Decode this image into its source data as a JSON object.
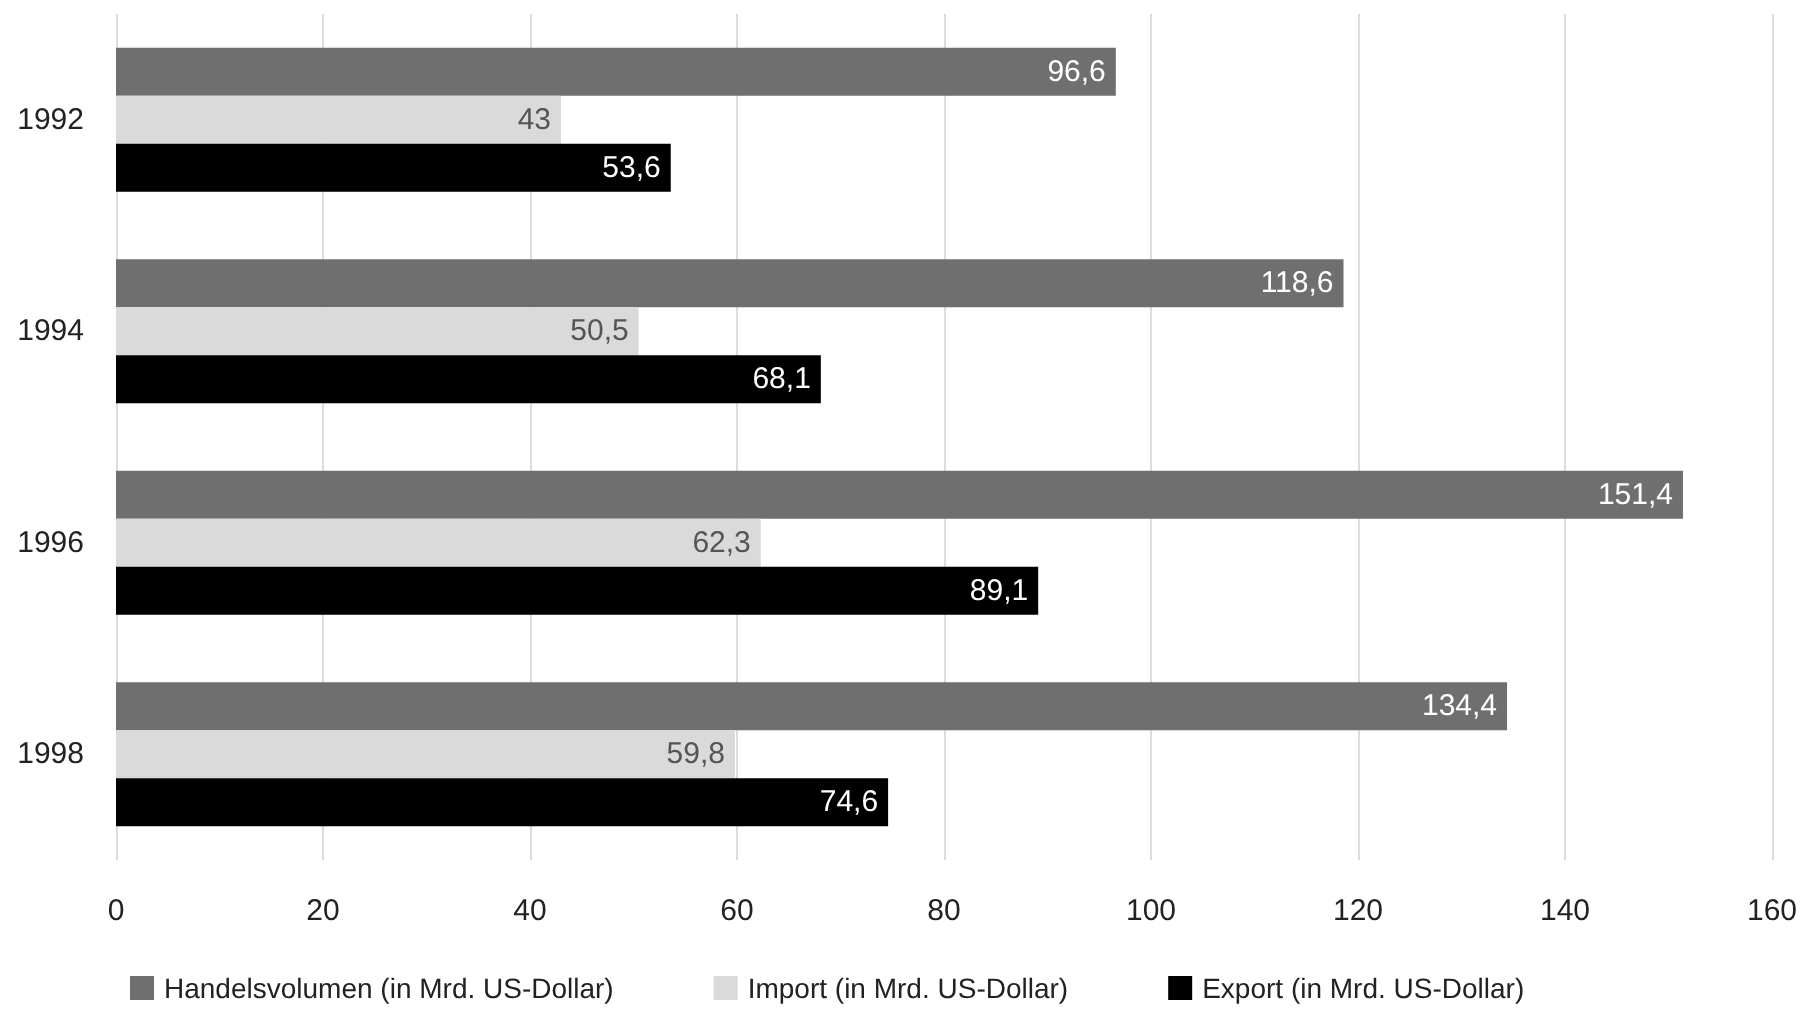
{
  "chart_data": {
    "type": "bar",
    "orientation": "horizontal",
    "categories": [
      "1992",
      "1994",
      "1996",
      "1998"
    ],
    "series": [
      {
        "name": "Handelsvolumen (in Mrd. US-Dollar)",
        "color": "#6f6f6f",
        "values": [
          96.6,
          118.6,
          151.4,
          134.4
        ],
        "value_labels": [
          "96,6",
          "118,6",
          "151,4",
          "134,4"
        ]
      },
      {
        "name": "Import (in Mrd. US-Dollar)",
        "color": "#dadada",
        "values": [
          43,
          50.5,
          62.3,
          59.8
        ],
        "value_labels": [
          "43",
          "50,5",
          "62,3",
          "59,8"
        ]
      },
      {
        "name": "Export (in Mrd. US-Dollar)",
        "color": "#000000",
        "values": [
          53.6,
          68.1,
          89.1,
          74.6
        ],
        "value_labels": [
          "53,6",
          "68,1",
          "89,1",
          "74,6"
        ]
      }
    ],
    "xlim": [
      0,
      160
    ],
    "xticks": [
      0,
      20,
      40,
      60,
      80,
      100,
      120,
      140,
      160
    ],
    "grid": "x",
    "legend": "bottom"
  }
}
